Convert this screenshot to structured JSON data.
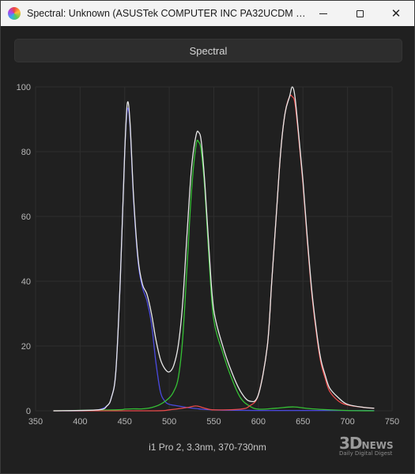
{
  "window": {
    "title": "Spectral: Unknown (ASUSTek COMPUTER INC PA32UCDM Nati...",
    "app_icon": "spectral-app-icon",
    "controls": {
      "minimize": "minimize-icon",
      "maximize": "maximize-icon",
      "close": "close-icon"
    }
  },
  "toolbar": {
    "spectral_label": "Spectral"
  },
  "footer": {
    "instrument": "i1 Pro 2, 3.3nm, 370-730nm"
  },
  "watermark": {
    "brand": "3D",
    "brand2": "NEWS",
    "tagline": "Daily Digital Digest"
  },
  "colors": {
    "background": "#202020",
    "grid": "#2e2e2e",
    "axis_text": "#b8b8b8"
  },
  "chart_data": {
    "type": "line",
    "title": "",
    "xlabel": "",
    "ylabel": "",
    "xlim": [
      350,
      750
    ],
    "ylim": [
      0,
      100
    ],
    "xticks": [
      350,
      400,
      450,
      500,
      550,
      600,
      650,
      700,
      750
    ],
    "yticks": [
      0,
      20,
      40,
      60,
      80,
      100
    ],
    "grid": true,
    "series": [
      {
        "color": "#4a4ae0",
        "x": [
          370,
          400,
          420,
          430,
          435,
          440,
          445,
          450,
          453,
          456,
          460,
          465,
          470,
          475,
          480,
          485,
          490,
          495,
          500,
          510,
          520,
          530,
          540,
          560,
          600,
          650,
          700,
          730
        ],
        "y": [
          0,
          0,
          0.3,
          1.5,
          4,
          12,
          40,
          80,
          93,
          88,
          65,
          46,
          38,
          34,
          27,
          15,
          6,
          3,
          2,
          1.5,
          1,
          0.7,
          0.4,
          0.2,
          0.1,
          0.1,
          0.1,
          0.1
        ]
      },
      {
        "color": "#35c035",
        "x": [
          370,
          440,
          450,
          460,
          470,
          480,
          490,
          500,
          505,
          510,
          515,
          520,
          525,
          530,
          533,
          536,
          540,
          545,
          550,
          560,
          570,
          580,
          590,
          600,
          620,
          640,
          660,
          700,
          730
        ],
        "y": [
          0,
          0.3,
          0.5,
          0.6,
          0.6,
          1,
          2,
          4,
          6,
          10,
          22,
          45,
          68,
          82,
          83,
          80,
          68,
          45,
          28,
          18,
          10,
          4,
          1.5,
          0.5,
          0.8,
          1.2,
          0.6,
          0.1,
          0
        ]
      },
      {
        "color": "#e84a4a",
        "x": [
          370,
          480,
          500,
          520,
          530,
          540,
          550,
          580,
          590,
          600,
          610,
          615,
          620,
          625,
          630,
          635,
          638,
          641,
          645,
          650,
          655,
          660,
          665,
          670,
          675,
          680,
          690,
          700,
          720,
          730
        ],
        "y": [
          0,
          0,
          0.3,
          1,
          1.5,
          0.8,
          0.3,
          0.5,
          1.5,
          5,
          20,
          40,
          60,
          80,
          92,
          97,
          97,
          95,
          85,
          70,
          52,
          36,
          24,
          15,
          10,
          6,
          3,
          1.8,
          1,
          0.8
        ]
      },
      {
        "color": "#e8e8e8",
        "x": [
          370,
          420,
          430,
          435,
          440,
          445,
          450,
          453,
          456,
          460,
          465,
          470,
          475,
          480,
          485,
          490,
          495,
          500,
          505,
          510,
          515,
          520,
          525,
          530,
          533,
          536,
          540,
          545,
          550,
          560,
          570,
          580,
          590,
          600,
          610,
          615,
          620,
          625,
          630,
          635,
          638,
          641,
          645,
          650,
          655,
          660,
          665,
          670,
          675,
          680,
          690,
          700,
          720,
          730
        ],
        "y": [
          0,
          0.3,
          1.5,
          4,
          12,
          40,
          80,
          95,
          89,
          66,
          47,
          39,
          36,
          30,
          22,
          16,
          13,
          12,
          14,
          20,
          33,
          55,
          75,
          85,
          86,
          83,
          70,
          48,
          31,
          20,
          12,
          6,
          3,
          5,
          20,
          40,
          60,
          80,
          92,
          97,
          100,
          97,
          86,
          71,
          53,
          37,
          25,
          16,
          11,
          7,
          4,
          2,
          1,
          0.8
        ]
      }
    ]
  }
}
